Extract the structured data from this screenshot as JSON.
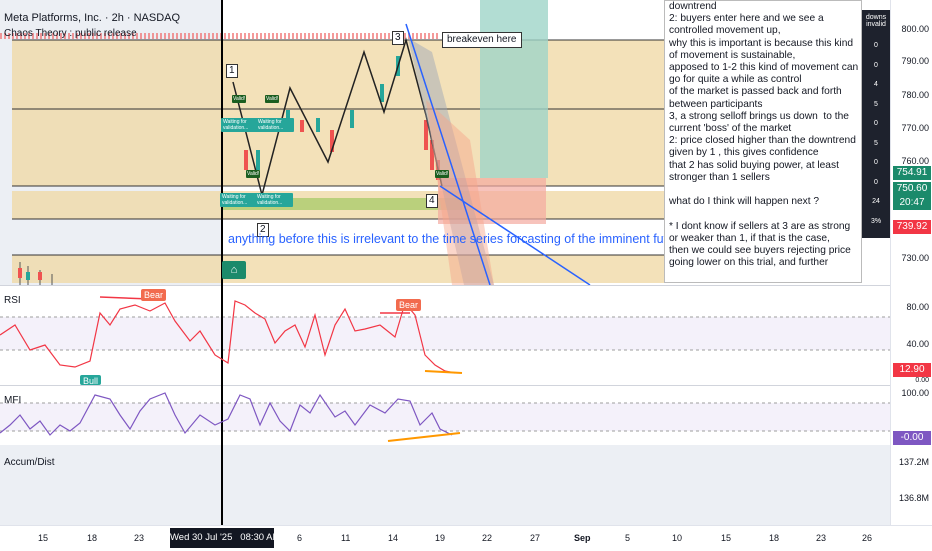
{
  "header": {
    "symbol": "Meta Platforms, Inc. · 2h · NASDAQ",
    "indicator": "Chaos Theory : public release"
  },
  "markers": {
    "m1": "1",
    "m2": "2",
    "m3": "3",
    "m4": "4",
    "breakeven": "breakeven here"
  },
  "signals": {
    "valid": "Valid!",
    "waiting": "Waiting for validation..."
  },
  "annotation": "anything before this is irrelevant to the time series forcasting of the imminent future",
  "note_lines": [
    "downtrend",
    "2: buyers enter here and we see a controlled movement up,",
    "why this is important is because this kind of movement is sustainable,",
    "apposed to 1-2 this kind of movement can go for quite a while as control",
    "of the market is passed back and forth between participants",
    "3, a strong selloff brings us down  to the current 'boss' of the market",
    "2: price closed higher than the downtrend given by 1 , this gives confidence",
    "that 2 has solid buying power, at least stronger than 1 sellers",
    "",
    "what do I think will happen next ?",
    "",
    "* I dont know if sellers at 3 are as strong or weaker than 1, if that is the case,",
    "then we could see buyers rejecting price going lower on this trial, and further"
  ],
  "side_table": {
    "header1": "downs",
    "header2": "invalid",
    "values": [
      "0",
      "0",
      "4",
      "5",
      "0",
      "5",
      "0",
      "0",
      "24",
      "3%"
    ]
  },
  "yaxis_main": [
    "800.00",
    "790.00",
    "780.00",
    "770.00",
    "760.00",
    "730.00"
  ],
  "price_tags": {
    "p1": "754.91",
    "p2": "750.60",
    "p2_time": "20:47",
    "p3": "739.92"
  },
  "rsi": {
    "label": "RSI",
    "ticks": [
      "80.00",
      "40.00"
    ],
    "value": "12.90",
    "value_extra": "0.00",
    "bear": "Bear",
    "bull": "Bull"
  },
  "mfi": {
    "label": "MFI",
    "ticks": [
      "100.00"
    ],
    "value": "-0.00"
  },
  "ad": {
    "label": "Accum/Dist",
    "ticks": [
      "137.2M",
      "136.8M"
    ]
  },
  "xaxis": {
    "ticks": [
      "15",
      "18",
      "23",
      "6",
      "11",
      "14",
      "19",
      "22",
      "27",
      "Sep",
      "5",
      "10",
      "15",
      "18",
      "23",
      "26"
    ],
    "crosshair": "Wed 30 Jul '25   08:30 AM"
  },
  "colors": {
    "accent": "#2962ff",
    "rsi_line": "#f23645",
    "mfi_line": "#7e57c2",
    "zone": "#f0d9a8",
    "tag_green": "#1b8a6b",
    "tag_red": "#f23645"
  }
}
